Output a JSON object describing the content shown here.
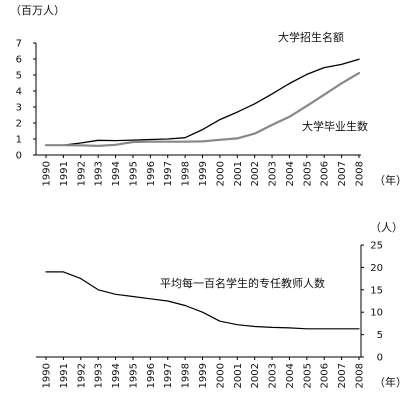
{
  "chart_data": [
    {
      "type": "line",
      "unit": "（百万人）",
      "x_unit": "（年）",
      "categories": [
        "1990",
        "1991",
        "1992",
        "1993",
        "1994",
        "1995",
        "1996",
        "1997",
        "1998",
        "1999",
        "2000",
        "2001",
        "2002",
        "2003",
        "2004",
        "2005",
        "2006",
        "2007",
        "2008"
      ],
      "ylim": [
        0,
        7
      ],
      "yticks": [
        0,
        1,
        2,
        3,
        4,
        5,
        6,
        7
      ],
      "series": [
        {
          "name": "大学招生名额",
          "color": "#000000",
          "values": [
            0.61,
            0.62,
            0.75,
            0.92,
            0.9,
            0.93,
            0.97,
            1.0,
            1.08,
            1.59,
            2.21,
            2.68,
            3.2,
            3.82,
            4.47,
            5.04,
            5.46,
            5.66,
            5.99
          ]
        },
        {
          "name": "大学毕业生数",
          "color": "#888888",
          "values": [
            0.61,
            0.61,
            0.6,
            0.57,
            0.64,
            0.81,
            0.84,
            0.83,
            0.83,
            0.85,
            0.95,
            1.04,
            1.34,
            1.88,
            2.39,
            3.07,
            3.77,
            4.48,
            5.12
          ]
        }
      ]
    },
    {
      "type": "line",
      "unit": "（人）",
      "x_unit": "（年）",
      "categories": [
        "1990",
        "1991",
        "1992",
        "1993",
        "1994",
        "1995",
        "1996",
        "1997",
        "1998",
        "1999",
        "2000",
        "2001",
        "2002",
        "2003",
        "2004",
        "2005",
        "2006",
        "2007",
        "2008"
      ],
      "ylim": [
        0,
        25
      ],
      "yticks": [
        0,
        5,
        10,
        15,
        20,
        25
      ],
      "series": [
        {
          "name": "平均每一百名学生的专任教师人数",
          "color": "#000000",
          "values": [
            19,
            19,
            17.5,
            15,
            14,
            13.5,
            13,
            12.5,
            11.5,
            10,
            8,
            7.2,
            6.8,
            6.6,
            6.5,
            6.3,
            6.3,
            6.3,
            6.3
          ]
        }
      ]
    }
  ]
}
